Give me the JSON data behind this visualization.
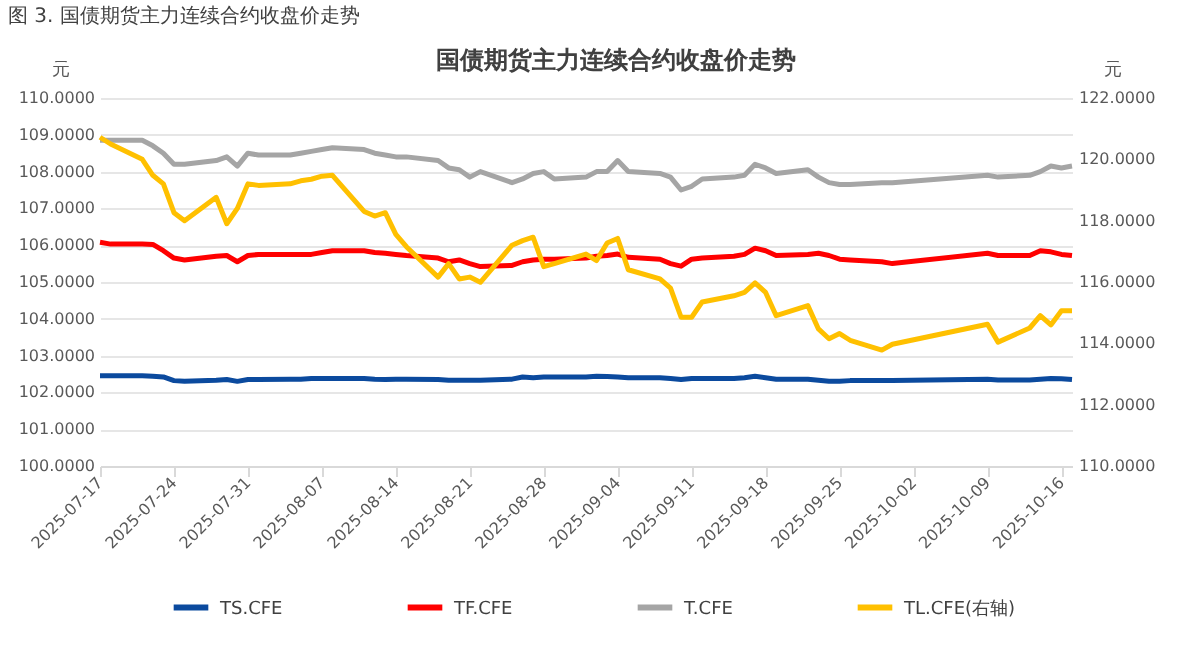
{
  "chart_data": {
    "type": "line",
    "title": "国债期货主力连续合约收盘价走势",
    "annotations": [
      "图 3.  国债期货主力连续合约收盘价走势"
    ],
    "ylabel": "元",
    "y2label": "元",
    "x": [
      "2025-07-17",
      "2025-07-18",
      "2025-07-21",
      "2025-07-22",
      "2025-07-23",
      "2025-07-24",
      "2025-07-25",
      "2025-07-28",
      "2025-07-29",
      "2025-07-30",
      "2025-07-31",
      "2025-08-01",
      "2025-08-04",
      "2025-08-05",
      "2025-08-06",
      "2025-08-07",
      "2025-08-08",
      "2025-08-11",
      "2025-08-12",
      "2025-08-13",
      "2025-08-14",
      "2025-08-15",
      "2025-08-18",
      "2025-08-19",
      "2025-08-20",
      "2025-08-21",
      "2025-08-22",
      "2025-08-25",
      "2025-08-26",
      "2025-08-27",
      "2025-08-28",
      "2025-08-29",
      "2025-09-01",
      "2025-09-02",
      "2025-09-03",
      "2025-09-04",
      "2025-09-05",
      "2025-09-08",
      "2025-09-09",
      "2025-09-10",
      "2025-09-11",
      "2025-09-12",
      "2025-09-15",
      "2025-09-16",
      "2025-09-17",
      "2025-09-18",
      "2025-09-19",
      "2025-09-22",
      "2025-09-23",
      "2025-09-24",
      "2025-09-25",
      "2025-09-26",
      "2025-09-29",
      "2025-09-30",
      "2025-10-09",
      "2025-10-10",
      "2025-10-13",
      "2025-10-14",
      "2025-10-15",
      "2025-10-16",
      "2025-10-17"
    ],
    "series": [
      {
        "name": "TS.CFE",
        "color": "#0b4a9e",
        "values": [
          102.45,
          102.45,
          102.45,
          102.44,
          102.42,
          102.32,
          102.3,
          102.33,
          102.35,
          102.3,
          102.35,
          102.35,
          102.36,
          102.36,
          102.38,
          102.38,
          102.38,
          102.38,
          102.36,
          102.35,
          102.36,
          102.36,
          102.35,
          102.33,
          102.33,
          102.33,
          102.33,
          102.36,
          102.42,
          102.4,
          102.42,
          102.42,
          102.42,
          102.44,
          102.43,
          102.42,
          102.4,
          102.4,
          102.38,
          102.35,
          102.38,
          102.38,
          102.38,
          102.4,
          102.44,
          102.4,
          102.36,
          102.36,
          102.33,
          102.3,
          102.3,
          102.32,
          102.32,
          102.32,
          102.36,
          102.34,
          102.34,
          102.36,
          102.38,
          102.37,
          102.35
        ]
      },
      {
        "name": "TF.CFE",
        "color": "#ff0000",
        "values": [
          106.08,
          106.03,
          106.03,
          106.02,
          105.85,
          105.65,
          105.6,
          105.7,
          105.72,
          105.55,
          105.72,
          105.75,
          105.75,
          105.75,
          105.75,
          105.8,
          105.85,
          105.85,
          105.8,
          105.78,
          105.75,
          105.72,
          105.65,
          105.55,
          105.6,
          105.5,
          105.42,
          105.45,
          105.55,
          105.6,
          105.62,
          105.62,
          105.65,
          105.7,
          105.72,
          105.76,
          105.67,
          105.62,
          105.5,
          105.43,
          105.62,
          105.65,
          105.7,
          105.75,
          105.92,
          105.85,
          105.72,
          105.75,
          105.78,
          105.72,
          105.62,
          105.6,
          105.55,
          105.5,
          105.78,
          105.72,
          105.72,
          105.85,
          105.82,
          105.75,
          105.72
        ]
      },
      {
        "name": "T.CFE",
        "color": "#a5a5a5",
        "values": [
          108.85,
          108.85,
          108.85,
          108.7,
          108.5,
          108.2,
          108.2,
          108.3,
          108.4,
          108.15,
          108.5,
          108.45,
          108.45,
          108.5,
          108.55,
          108.6,
          108.65,
          108.6,
          108.5,
          108.45,
          108.4,
          108.4,
          108.3,
          108.1,
          108.05,
          107.85,
          108.0,
          107.7,
          107.8,
          107.95,
          108.0,
          107.8,
          107.85,
          108.0,
          108.0,
          108.3,
          108.0,
          107.95,
          107.85,
          107.5,
          107.6,
          107.8,
          107.85,
          107.9,
          108.2,
          108.1,
          107.95,
          108.05,
          107.85,
          107.7,
          107.65,
          107.65,
          107.7,
          107.7,
          107.9,
          107.85,
          107.9,
          108.0,
          108.15,
          108.1,
          108.15
        ]
      },
      {
        "name": "TL.CFE(右轴)",
        "color": "#ffc000",
        "axis": "y2",
        "values": [
          120.72,
          120.5,
          120.0,
          119.48,
          119.2,
          118.26,
          118.0,
          118.76,
          117.9,
          118.4,
          119.2,
          119.15,
          119.2,
          119.3,
          119.35,
          119.45,
          119.48,
          118.3,
          118.15,
          118.26,
          117.55,
          117.15,
          116.16,
          116.6,
          116.1,
          116.16,
          115.99,
          117.2,
          117.35,
          117.46,
          116.5,
          116.6,
          116.91,
          116.7,
          117.27,
          117.42,
          116.4,
          116.1,
          115.8,
          114.85,
          114.85,
          115.35,
          115.55,
          115.66,
          115.97,
          115.66,
          114.9,
          115.23,
          114.47,
          114.15,
          114.32,
          114.1,
          113.78,
          113.97,
          114.62,
          114.04,
          114.5,
          114.9,
          114.6,
          115.06,
          115.06
        ]
      }
    ],
    "xlim": [
      "2025-07-17",
      "2025-10-17"
    ],
    "xticks": [
      "2025-07-17",
      "2025-07-24",
      "2025-07-31",
      "2025-08-07",
      "2025-08-14",
      "2025-08-21",
      "2025-08-28",
      "2025-09-04",
      "2025-09-11",
      "2025-09-18",
      "2025-09-25",
      "2025-10-02",
      "2025-10-09",
      "2025-10-16"
    ],
    "ylim": [
      100,
      110
    ],
    "yticks": [
      {
        "value": 100,
        "label": "100.0000"
      },
      {
        "value": 101,
        "label": "101.0000"
      },
      {
        "value": 102,
        "label": "102.0000"
      },
      {
        "value": 103,
        "label": "103.0000"
      },
      {
        "value": 104,
        "label": "104.0000"
      },
      {
        "value": 105,
        "label": "105.0000"
      },
      {
        "value": 106,
        "label": "106.0000"
      },
      {
        "value": 107,
        "label": "107.0000"
      },
      {
        "value": 108,
        "label": "108.0000"
      },
      {
        "value": 109,
        "label": "109.0000"
      },
      {
        "value": 110,
        "label": "110.0000"
      }
    ],
    "y2lim": [
      110,
      122
    ],
    "y2ticks": [
      {
        "value": 110,
        "label": "110.0000"
      },
      {
        "value": 112,
        "label": "112.0000"
      },
      {
        "value": 114,
        "label": "114.0000"
      },
      {
        "value": 116,
        "label": "116.0000"
      },
      {
        "value": 118,
        "label": "118.0000"
      },
      {
        "value": 120,
        "label": "120.0000"
      },
      {
        "value": 122,
        "label": "122.0000"
      }
    ],
    "grid": "y",
    "legend": "bottom",
    "marker": "none",
    "line_style": "solid"
  }
}
